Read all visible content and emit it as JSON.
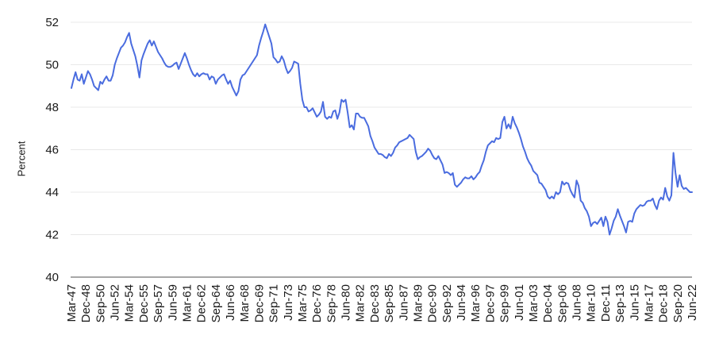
{
  "chart_data": {
    "type": "line",
    "title": "",
    "xlabel": "",
    "ylabel": "Percent",
    "legend": "none",
    "grid": "horizontal",
    "ylim": [
      40,
      52
    ],
    "y_ticks": [
      40,
      42,
      44,
      46,
      48,
      50,
      52
    ],
    "x_unit": "quarter",
    "x_start_label": "Mar-47",
    "x_end_label": "Jun-22",
    "x_tick_interval": 7,
    "x_tick_labels": [
      "Mar-47",
      "Dec-48",
      "Sep-50",
      "Jun-52",
      "Mar-54",
      "Dec-55",
      "Sep-57",
      "Jun-59",
      "Mar-61",
      "Dec-62",
      "Sep-64",
      "Jun-66",
      "Mar-68",
      "Dec-69",
      "Sep-71",
      "Jun-73",
      "Mar-75",
      "Dec-76",
      "Sep-78",
      "Jun-80",
      "Mar-82",
      "Dec-83",
      "Sep-85",
      "Jun-87",
      "Mar-89",
      "Dec-90",
      "Sep-92",
      "Jun-94",
      "Mar-96",
      "Dec-97",
      "Sep-99",
      "Jun-01",
      "Mar-03",
      "Dec-04",
      "Sep-06",
      "Jun-08",
      "Mar-10",
      "Dec-11",
      "Sep-13",
      "Jun-15",
      "Mar-17",
      "Dec-18",
      "Sep-20",
      "Jun-22"
    ],
    "series_name": "Percent",
    "line_color": "#4a6cdf",
    "values": [
      48.9,
      49.3,
      49.65,
      49.3,
      49.25,
      49.55,
      49.1,
      49.4,
      49.7,
      49.55,
      49.3,
      49.0,
      48.9,
      48.8,
      49.2,
      49.1,
      49.3,
      49.45,
      49.25,
      49.25,
      49.5,
      50.0,
      50.3,
      50.55,
      50.8,
      50.9,
      51.05,
      51.3,
      51.5,
      51.0,
      50.7,
      50.4,
      49.95,
      49.4,
      50.2,
      50.5,
      50.75,
      51.0,
      51.15,
      50.9,
      51.1,
      50.85,
      50.6,
      50.45,
      50.3,
      50.1,
      49.95,
      49.9,
      49.9,
      49.95,
      50.05,
      50.1,
      49.8,
      50.05,
      50.3,
      50.55,
      50.3,
      50.0,
      49.75,
      49.55,
      49.45,
      49.6,
      49.45,
      49.55,
      49.6,
      49.55,
      49.55,
      49.3,
      49.45,
      49.4,
      49.1,
      49.3,
      49.4,
      49.5,
      49.55,
      49.3,
      49.1,
      49.25,
      48.95,
      48.75,
      48.55,
      48.75,
      49.3,
      49.5,
      49.55,
      49.7,
      49.85,
      50.0,
      50.15,
      50.3,
      50.45,
      50.9,
      51.25,
      51.55,
      51.9,
      51.6,
      51.3,
      51.0,
      50.35,
      50.25,
      50.1,
      50.15,
      50.4,
      50.2,
      49.85,
      49.6,
      49.7,
      49.85,
      50.15,
      50.1,
      50.05,
      49.1,
      48.35,
      48.0,
      48.0,
      47.8,
      47.85,
      47.95,
      47.75,
      47.55,
      47.65,
      47.8,
      48.25,
      47.55,
      47.45,
      47.55,
      47.5,
      47.8,
      47.85,
      47.45,
      47.75,
      48.35,
      48.25,
      48.35,
      47.75,
      47.05,
      47.15,
      46.95,
      47.7,
      47.7,
      47.55,
      47.5,
      47.5,
      47.3,
      47.1,
      46.65,
      46.4,
      46.1,
      45.95,
      45.8,
      45.8,
      45.75,
      45.65,
      45.6,
      45.8,
      45.7,
      45.85,
      46.1,
      46.2,
      46.35,
      46.4,
      46.45,
      46.5,
      46.55,
      46.7,
      46.6,
      46.5,
      45.9,
      45.55,
      45.65,
      45.7,
      45.8,
      45.9,
      46.05,
      45.95,
      45.75,
      45.6,
      45.55,
      45.7,
      45.5,
      45.3,
      44.9,
      44.95,
      44.9,
      44.8,
      44.9,
      44.35,
      44.25,
      44.35,
      44.45,
      44.6,
      44.7,
      44.65,
      44.65,
      44.75,
      44.6,
      44.7,
      44.85,
      44.95,
      45.25,
      45.5,
      45.9,
      46.2,
      46.3,
      46.4,
      46.35,
      46.55,
      46.5,
      46.55,
      47.3,
      47.55,
      47.0,
      47.2,
      47.0,
      47.55,
      47.25,
      47.05,
      46.8,
      46.5,
      46.15,
      45.9,
      45.6,
      45.4,
      45.25,
      45.0,
      44.9,
      44.8,
      44.45,
      44.4,
      44.25,
      44.1,
      43.8,
      43.7,
      43.8,
      43.7,
      44.0,
      43.9,
      44.0,
      44.5,
      44.35,
      44.45,
      44.4,
      44.1,
      43.9,
      43.75,
      44.55,
      44.3,
      43.6,
      43.5,
      43.25,
      43.1,
      42.85,
      42.4,
      42.55,
      42.6,
      42.5,
      42.65,
      42.8,
      42.4,
      42.85,
      42.6,
      42.0,
      42.3,
      42.65,
      42.85,
      43.2,
      42.9,
      42.65,
      42.4,
      42.1,
      42.6,
      42.65,
      42.6,
      43.0,
      43.2,
      43.3,
      43.4,
      43.35,
      43.4,
      43.55,
      43.6,
      43.6,
      43.7,
      43.4,
      43.2,
      43.6,
      43.75,
      43.65,
      44.2,
      43.8,
      43.6,
      43.85,
      45.85,
      44.9,
      44.25,
      44.8,
      44.3,
      44.15,
      44.2,
      44.1,
      44.0,
      44.0
    ],
    "colors": {
      "gridline": "#e8e8e8",
      "axis_line": "#8a8a8a",
      "tick_text": "#1a1a1a",
      "background": "#ffffff"
    }
  }
}
